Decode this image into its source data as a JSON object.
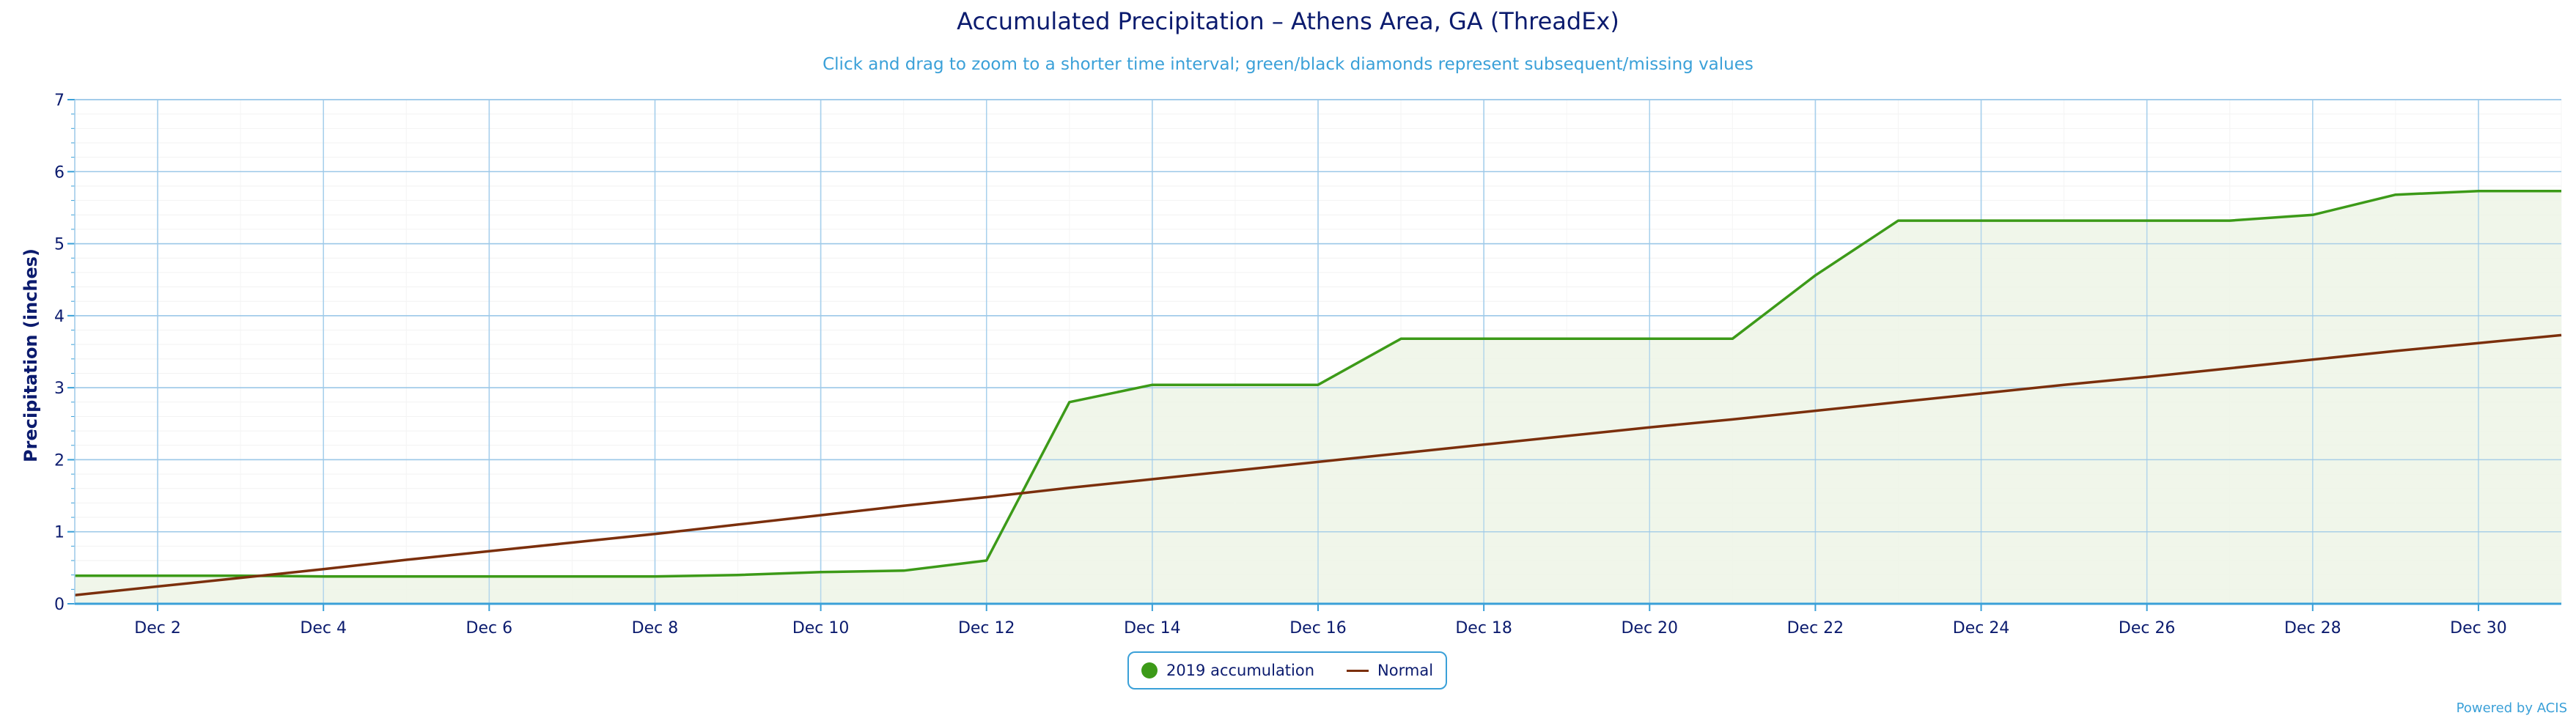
{
  "chart_data": {
    "type": "area",
    "title": "Accumulated Precipitation – Athens Area, GA (ThreadEx)",
    "subtitle": "Click and drag to zoom to a shorter time interval; green/black diamonds represent subsequent/missing values",
    "credit": "Powered by ACIS",
    "ylabel": "Precipitation (inches)",
    "xlabel": "",
    "ylim": [
      0,
      7
    ],
    "yticks": [
      "0",
      "1",
      "2",
      "3",
      "4",
      "5",
      "6",
      "7"
    ],
    "xticks": [
      {
        "day": 2,
        "label": "Dec 2"
      },
      {
        "day": 4,
        "label": "Dec 4"
      },
      {
        "day": 6,
        "label": "Dec 6"
      },
      {
        "day": 8,
        "label": "Dec 8"
      },
      {
        "day": 10,
        "label": "Dec 10"
      },
      {
        "day": 12,
        "label": "Dec 12"
      },
      {
        "day": 14,
        "label": "Dec 14"
      },
      {
        "day": 16,
        "label": "Dec 16"
      },
      {
        "day": 18,
        "label": "Dec 18"
      },
      {
        "day": 20,
        "label": "Dec 20"
      },
      {
        "day": 22,
        "label": "Dec 22"
      },
      {
        "day": 24,
        "label": "Dec 24"
      },
      {
        "day": 26,
        "label": "Dec 26"
      },
      {
        "day": 28,
        "label": "Dec 28"
      },
      {
        "day": 30,
        "label": "Dec 30"
      }
    ],
    "grid": true,
    "legend_position": "bottom-center",
    "x": [
      1,
      2,
      3,
      4,
      5,
      6,
      7,
      8,
      9,
      10,
      11,
      12,
      13,
      14,
      15,
      16,
      17,
      18,
      19,
      20,
      21,
      22,
      23,
      24,
      25,
      26,
      27,
      28,
      29,
      30,
      31
    ],
    "series": [
      {
        "name": "2019 accumulation",
        "type": "area",
        "color": "#3c9a18",
        "fill": "#edf5e6",
        "values": [
          0.39,
          0.39,
          0.39,
          0.38,
          0.38,
          0.38,
          0.38,
          0.38,
          0.4,
          0.44,
          0.46,
          0.6,
          2.8,
          3.04,
          3.04,
          3.04,
          3.68,
          3.68,
          3.68,
          3.68,
          3.68,
          4.56,
          5.32,
          5.32,
          5.32,
          5.32,
          5.32,
          5.4,
          5.68,
          5.73,
          5.73
        ]
      },
      {
        "name": "Normal",
        "type": "line",
        "color": "#7b2f0c",
        "values": [
          0.12,
          0.24,
          0.36,
          0.48,
          0.61,
          0.73,
          0.85,
          0.97,
          1.1,
          1.23,
          1.36,
          1.48,
          1.61,
          1.73,
          1.85,
          1.97,
          2.09,
          2.21,
          2.33,
          2.45,
          2.56,
          2.68,
          2.8,
          2.92,
          3.04,
          3.15,
          3.27,
          3.39,
          3.51,
          3.62,
          3.73
        ]
      }
    ]
  }
}
